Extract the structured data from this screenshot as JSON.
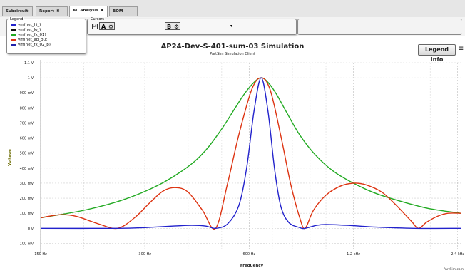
{
  "tabs": [
    {
      "label": "Subcircuit",
      "close": ""
    },
    {
      "label": "Report",
      "close": "✖"
    },
    {
      "label": "AC Analysis",
      "close": "✖"
    },
    {
      "label": "BOM",
      "close": ""
    }
  ],
  "legend": {
    "title": "Legend",
    "items": [
      {
        "label": "vm(net_hi_)",
        "color": "#2222cc"
      },
      {
        "label": "vm(net_lo_)",
        "color": "#111111"
      },
      {
        "label": "vm(net_fx_01)",
        "color": "#22aa22"
      },
      {
        "label": "vm(net_ap_out)",
        "color": "#dd3311"
      },
      {
        "label": "vm(net_fx_02_b)",
        "color": "#2222aa"
      }
    ]
  },
  "cursors": {
    "title": "Cursors",
    "a_label": "A",
    "b_label": "B",
    "gear": "⚙",
    "check": "☑",
    "caret": "▾"
  },
  "header": {
    "title": "AP24-Dev-S-401-sum-03 Simulation",
    "subtitle": "PartSim Simulation Client",
    "legend_info_label": "Legend Info",
    "menu_icon": "≡"
  },
  "footer": {
    "credit": "PartSim.com"
  },
  "chart_data": {
    "type": "line",
    "xlabel": "Frequency",
    "ylabel": "Voltage",
    "x_scale": "log",
    "xlim": [
      150,
      2450
    ],
    "ylim": [
      -0.15,
      1.1
    ],
    "grid": true,
    "x_ticks": [
      {
        "value": 150,
        "label": "150 Hz"
      },
      {
        "value": 300,
        "label": "300 Hz"
      },
      {
        "value": 600,
        "label": "600 Hz"
      },
      {
        "value": 1200,
        "label": "1.2 kHz"
      },
      {
        "value": 2400,
        "label": "2.4 kHz"
      }
    ],
    "y_ticks": [
      {
        "value": -0.1,
        "label": "-100 mV"
      },
      {
        "value": 0,
        "label": "0 V"
      },
      {
        "value": 0.1,
        "label": "100 mV"
      },
      {
        "value": 0.2,
        "label": "200 mV"
      },
      {
        "value": 0.3,
        "label": "300 mV"
      },
      {
        "value": 0.4,
        "label": "400 mV"
      },
      {
        "value": 0.5,
        "label": "500 mV"
      },
      {
        "value": 0.6,
        "label": "600 mV"
      },
      {
        "value": 0.7,
        "label": "700 mV"
      },
      {
        "value": 0.8,
        "label": "800 mV"
      },
      {
        "value": 0.9,
        "label": "900 mV"
      },
      {
        "value": 1.0,
        "label": "1 V"
      },
      {
        "value": 1.1,
        "label": "1.1 V"
      }
    ],
    "series": [
      {
        "color": "#22aa22",
        "points": [
          [
            150,
            0.07
          ],
          [
            200,
            0.12
          ],
          [
            260,
            0.19
          ],
          [
            330,
            0.29
          ],
          [
            400,
            0.41
          ],
          [
            450,
            0.52
          ],
          [
            500,
            0.66
          ],
          [
            540,
            0.78
          ],
          [
            580,
            0.89
          ],
          [
            620,
            0.97
          ],
          [
            650,
            1.0
          ],
          [
            680,
            0.97
          ],
          [
            720,
            0.89
          ],
          [
            770,
            0.77
          ],
          [
            840,
            0.62
          ],
          [
            930,
            0.49
          ],
          [
            1050,
            0.38
          ],
          [
            1200,
            0.3
          ],
          [
            1400,
            0.23
          ],
          [
            1700,
            0.17
          ],
          [
            2000,
            0.13
          ],
          [
            2450,
            0.1
          ]
        ]
      },
      {
        "color": "#dd3311",
        "points": [
          [
            150,
            0.07
          ],
          [
            170,
            0.09
          ],
          [
            190,
            0.08
          ],
          [
            220,
            0.03
          ],
          [
            250,
            0.0
          ],
          [
            280,
            0.07
          ],
          [
            310,
            0.17
          ],
          [
            340,
            0.25
          ],
          [
            370,
            0.27
          ],
          [
            400,
            0.24
          ],
          [
            440,
            0.12
          ],
          [
            480,
            0.0
          ],
          [
            520,
            0.3
          ],
          [
            560,
            0.62
          ],
          [
            610,
            0.92
          ],
          [
            650,
            1.0
          ],
          [
            690,
            0.92
          ],
          [
            740,
            0.62
          ],
          [
            790,
            0.3
          ],
          [
            840,
            0.07
          ],
          [
            870,
            0.0
          ],
          [
            920,
            0.12
          ],
          [
            1000,
            0.22
          ],
          [
            1100,
            0.28
          ],
          [
            1200,
            0.3
          ],
          [
            1300,
            0.29
          ],
          [
            1450,
            0.24
          ],
          [
            1600,
            0.15
          ],
          [
            1760,
            0.05
          ],
          [
            1850,
            0.0
          ],
          [
            1950,
            0.04
          ],
          [
            2100,
            0.08
          ],
          [
            2250,
            0.1
          ],
          [
            2450,
            0.1
          ]
        ]
      },
      {
        "color": "#2222cc",
        "points": [
          [
            150,
            0.0
          ],
          [
            250,
            0.0
          ],
          [
            300,
            0.005
          ],
          [
            360,
            0.015
          ],
          [
            410,
            0.02
          ],
          [
            450,
            0.015
          ],
          [
            480,
            0.0
          ],
          [
            520,
            0.03
          ],
          [
            560,
            0.15
          ],
          [
            590,
            0.4
          ],
          [
            620,
            0.78
          ],
          [
            650,
            1.0
          ],
          [
            680,
            0.78
          ],
          [
            710,
            0.4
          ],
          [
            740,
            0.15
          ],
          [
            780,
            0.04
          ],
          [
            840,
            0.005
          ],
          [
            870,
            0.0
          ],
          [
            940,
            0.02
          ],
          [
            1000,
            0.025
          ],
          [
            1150,
            0.02
          ],
          [
            1400,
            0.008
          ],
          [
            1800,
            0.0
          ],
          [
            2450,
            0.0
          ]
        ]
      }
    ]
  }
}
